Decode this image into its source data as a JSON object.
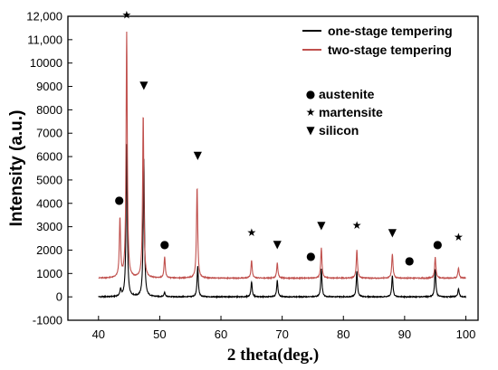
{
  "chart_data": {
    "type": "line",
    "xlabel": "2 theta(deg.)",
    "ylabel": "Intensity (a.u.)",
    "xlim": [
      35,
      102
    ],
    "ylim": [
      -1000,
      12000
    ],
    "x_ticks": [
      40,
      50,
      60,
      70,
      80,
      90,
      100
    ],
    "y_ticks": [
      -1000,
      0,
      1000,
      2000,
      3000,
      4000,
      5000,
      6000,
      7000,
      8000,
      9000,
      10000,
      11000,
      12000
    ],
    "y_tick_labels": [
      "-1000",
      "0",
      "1000",
      "2000",
      "3000",
      "4000",
      "5000",
      "6000",
      "7000",
      "8000",
      "9000",
      "10000",
      "11,000",
      "12,000"
    ],
    "legend_position": "top-right",
    "series": [
      {
        "name": "one-stage tempering",
        "color": "#000000",
        "baseline": 0,
        "peaks": [
          {
            "x": 43.6,
            "y": 300
          },
          {
            "x": 44.6,
            "y": 6500
          },
          {
            "x": 47.4,
            "y": 5900
          },
          {
            "x": 50.8,
            "y": 200
          },
          {
            "x": 56.2,
            "y": 1300
          },
          {
            "x": 65.0,
            "y": 650
          },
          {
            "x": 69.2,
            "y": 700
          },
          {
            "x": 76.4,
            "y": 1200
          },
          {
            "x": 82.2,
            "y": 1100
          },
          {
            "x": 88.0,
            "y": 900
          },
          {
            "x": 95.0,
            "y": 1200
          },
          {
            "x": 98.8,
            "y": 350
          }
        ]
      },
      {
        "name": "two-stage tempering",
        "color": "#c0504d",
        "baseline": 800,
        "peaks": [
          {
            "x": 43.5,
            "y": 3300
          },
          {
            "x": 44.6,
            "y": 11300
          },
          {
            "x": 47.3,
            "y": 7800
          },
          {
            "x": 50.8,
            "y": 1700
          },
          {
            "x": 56.1,
            "y": 4700
          },
          {
            "x": 65.0,
            "y": 1550
          },
          {
            "x": 69.2,
            "y": 1450
          },
          {
            "x": 76.4,
            "y": 2100
          },
          {
            "x": 82.2,
            "y": 2000
          },
          {
            "x": 88.0,
            "y": 1850
          },
          {
            "x": 95.0,
            "y": 1700
          },
          {
            "x": 98.8,
            "y": 1250
          }
        ]
      }
    ],
    "phase_legend": [
      {
        "symbol": "●",
        "label": "austenite"
      },
      {
        "symbol": "★",
        "label": "martensite"
      },
      {
        "symbol": "▼",
        "label": "silicon"
      }
    ],
    "peak_markers": [
      {
        "symbol": "●",
        "x": 43.4,
        "y": 4000
      },
      {
        "symbol": "★",
        "x": 44.6,
        "y": 11900
      },
      {
        "symbol": "▼",
        "x": 47.4,
        "y": 8900
      },
      {
        "symbol": "●",
        "x": 50.8,
        "y": 2100
      },
      {
        "symbol": "▼",
        "x": 56.2,
        "y": 5900
      },
      {
        "symbol": "★",
        "x": 65.0,
        "y": 2600
      },
      {
        "symbol": "▼",
        "x": 69.2,
        "y": 2100
      },
      {
        "symbol": "●",
        "x": 74.7,
        "y": 1600
      },
      {
        "symbol": "▼",
        "x": 76.4,
        "y": 2900
      },
      {
        "symbol": "★",
        "x": 82.2,
        "y": 2900
      },
      {
        "symbol": "▼",
        "x": 88.0,
        "y": 2600
      },
      {
        "symbol": "●",
        "x": 90.8,
        "y": 1400
      },
      {
        "symbol": "●",
        "x": 95.4,
        "y": 2100
      },
      {
        "symbol": "★",
        "x": 98.8,
        "y": 2400
      }
    ]
  }
}
